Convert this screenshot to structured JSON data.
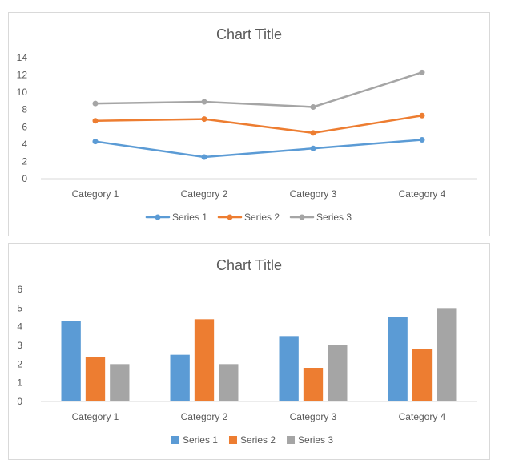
{
  "chart_data": [
    {
      "type": "line",
      "title": "Chart Title",
      "xlabel": "",
      "ylabel": "",
      "categories": [
        "Category 1",
        "Category 2",
        "Category 3",
        "Category 4"
      ],
      "series": [
        {
          "name": "Series 1",
          "values": [
            4.3,
            2.5,
            3.5,
            4.5
          ],
          "color": "#5b9bd5"
        },
        {
          "name": "Series 2",
          "values": [
            6.7,
            6.9,
            5.3,
            7.3
          ],
          "color": "#ed7d31"
        },
        {
          "name": "Series 3",
          "values": [
            8.7,
            8.9,
            8.3,
            12.3
          ],
          "color": "#a5a5a5"
        }
      ],
      "ylim": [
        0,
        14
      ],
      "yticks": [
        "0",
        "2",
        "4",
        "6",
        "8",
        "10",
        "12",
        "14"
      ],
      "grid": false,
      "markers": true,
      "legend_position": "bottom"
    },
    {
      "type": "bar",
      "title": "Chart Title",
      "xlabel": "",
      "ylabel": "",
      "categories": [
        "Category 1",
        "Category 2",
        "Category 3",
        "Category 4"
      ],
      "series": [
        {
          "name": "Series 1",
          "values": [
            4.3,
            2.5,
            3.5,
            4.5
          ],
          "color": "#5b9bd5"
        },
        {
          "name": "Series 2",
          "values": [
            2.4,
            4.4,
            1.8,
            2.8
          ],
          "color": "#ed7d31"
        },
        {
          "name": "Series 3",
          "values": [
            2,
            2,
            3,
            5
          ],
          "color": "#a5a5a5"
        }
      ],
      "ylim": [
        0,
        6
      ],
      "yticks": [
        "0",
        "1",
        "2",
        "3",
        "4",
        "5",
        "6"
      ],
      "grid": false,
      "legend_position": "bottom"
    }
  ]
}
